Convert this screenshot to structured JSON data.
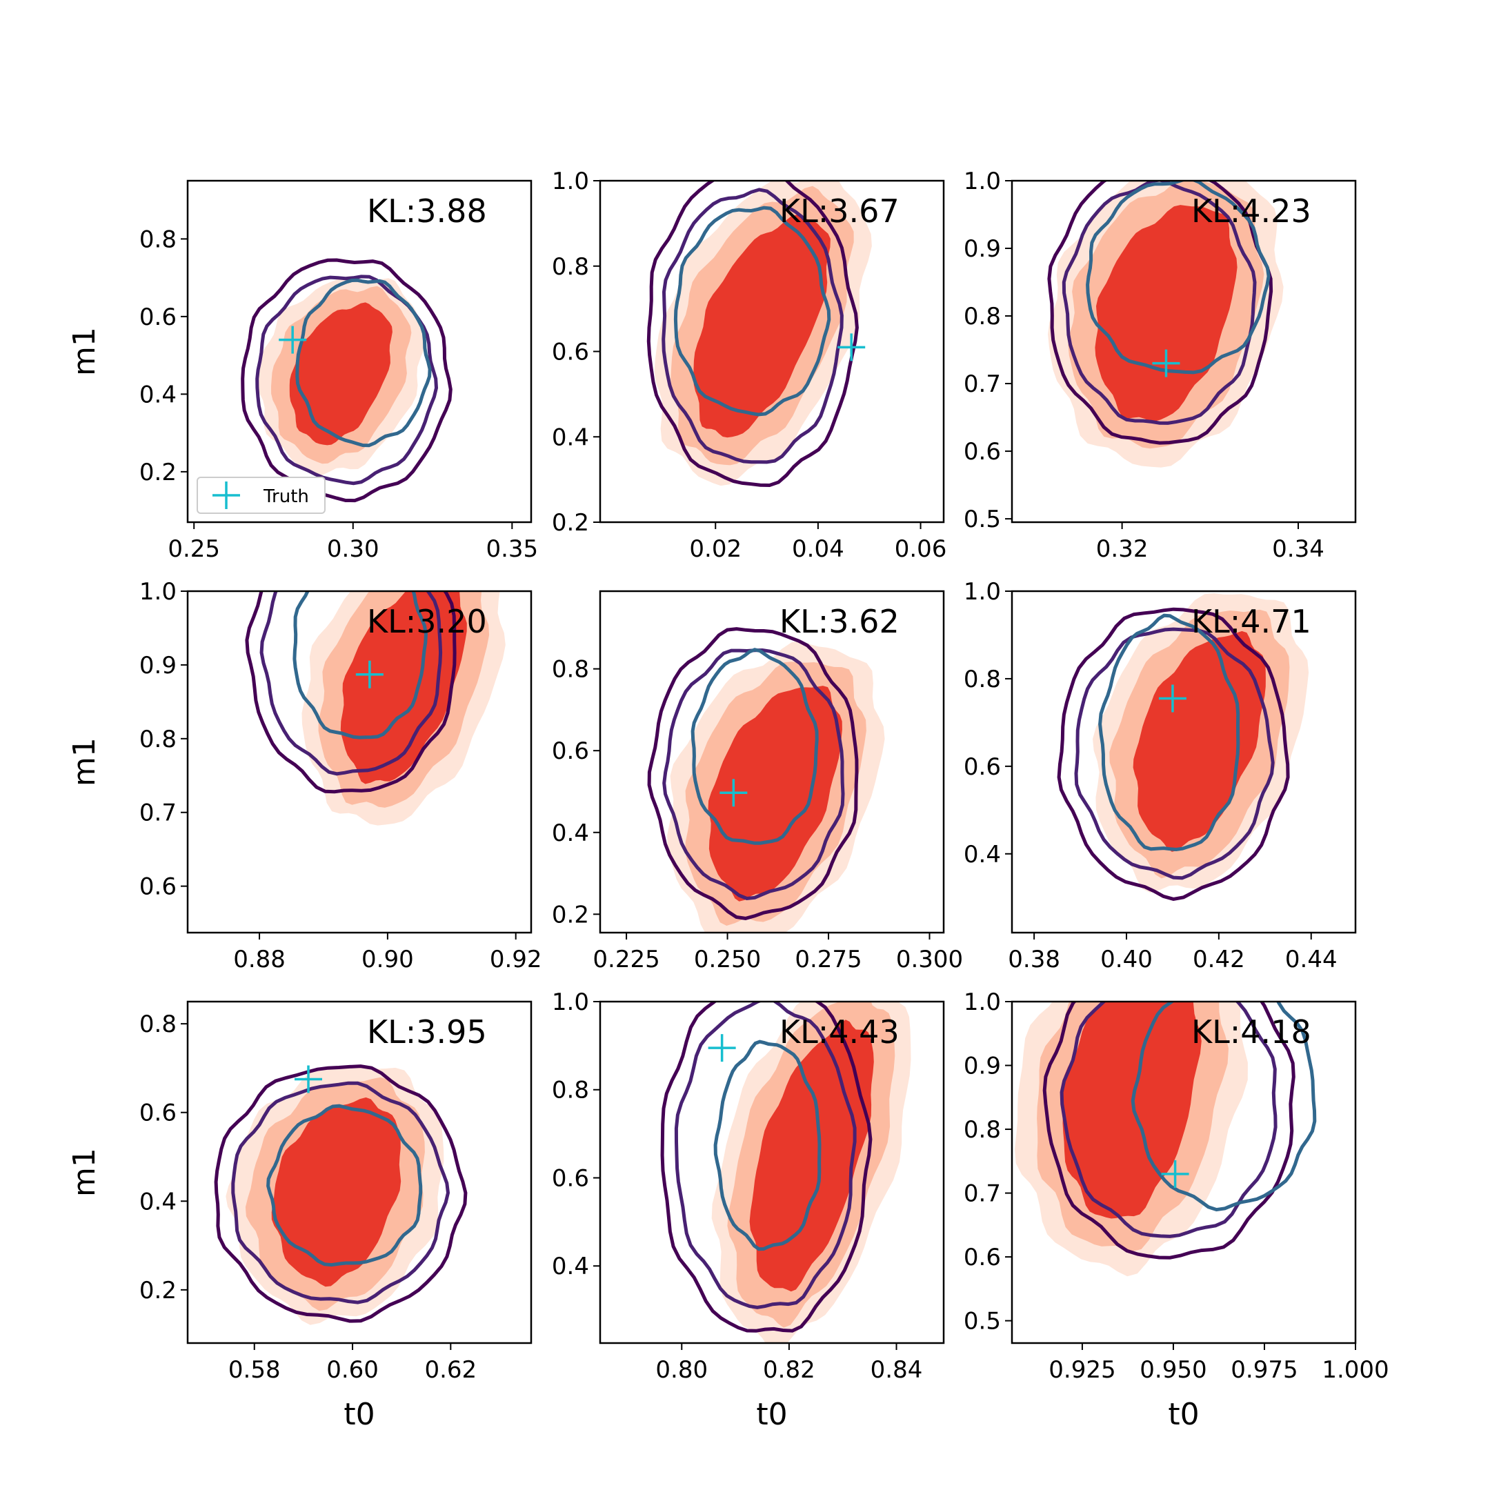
{
  "figure": {
    "xlabel": "t0",
    "ylabel": "m1",
    "legend_label": "Truth",
    "colors": {
      "fill_outer": "#fee5d9",
      "fill_mid": "#fcbba1",
      "fill_inner": "#e8382b",
      "contour_outer": "#440154",
      "contour_mid": "#482173",
      "contour_inner": "#31688e",
      "truth_marker": "#17becf",
      "frame": "#000000"
    }
  },
  "chart_data": [
    {
      "type": "contour",
      "xlabel": "",
      "ylabel": "m1",
      "kl": "KL:3.88",
      "xlim": [
        0.248,
        0.356
      ],
      "ylim": [
        0.07,
        0.95
      ],
      "xticks": [
        "0.25",
        "0.30",
        "0.35"
      ],
      "yticks": [
        "0.2",
        "0.4",
        "0.6",
        "0.8"
      ],
      "truth": [
        0.281,
        0.54
      ],
      "legend": true
    },
    {
      "type": "contour",
      "xlabel": "",
      "ylabel": "",
      "kl": "KL:3.67",
      "xlim": [
        -0.0025,
        0.0645
      ],
      "ylim": [
        0.2,
        1.0
      ],
      "xticks": [
        "0.02",
        "0.04",
        "0.06"
      ],
      "yticks": [
        "0.2",
        "0.4",
        "0.6",
        "0.8",
        "1.0"
      ],
      "truth": [
        0.0465,
        0.61
      ],
      "legend": false
    },
    {
      "type": "contour",
      "xlabel": "",
      "ylabel": "",
      "kl": "KL:4.23",
      "xlim": [
        0.3075,
        0.3465
      ],
      "ylim": [
        0.495,
        1.0
      ],
      "xticks": [
        "0.32",
        "0.34"
      ],
      "yticks": [
        "0.5",
        "0.6",
        "0.7",
        "0.8",
        "0.9",
        "1.0"
      ],
      "truth": [
        0.325,
        0.73
      ],
      "legend": false
    },
    {
      "type": "contour",
      "xlabel": "",
      "ylabel": "m1",
      "kl": "KL:3.20",
      "xlim": [
        0.8688,
        0.9224
      ],
      "ylim": [
        0.537,
        1.0
      ],
      "xticks": [
        "0.88",
        "0.90",
        "0.92"
      ],
      "yticks": [
        "0.6",
        "0.7",
        "0.8",
        "0.9",
        "1.0"
      ],
      "truth": [
        0.8972,
        0.887
      ],
      "legend": false
    },
    {
      "type": "contour",
      "xlabel": "",
      "ylabel": "",
      "kl": "KL:3.62",
      "xlim": [
        0.2185,
        0.3035
      ],
      "ylim": [
        0.155,
        0.99
      ],
      "xticks": [
        "0.225",
        "0.250",
        "0.275",
        "0.300"
      ],
      "yticks": [
        "0.2",
        "0.4",
        "0.6",
        "0.8"
      ],
      "truth": [
        0.2515,
        0.497
      ],
      "legend": false
    },
    {
      "type": "contour",
      "xlabel": "",
      "ylabel": "",
      "kl": "KL:4.71",
      "xlim": [
        0.3752,
        0.4496
      ],
      "ylim": [
        0.22,
        1.0
      ],
      "xticks": [
        "0.38",
        "0.40",
        "0.42",
        "0.44"
      ],
      "yticks": [
        "0.4",
        "0.6",
        "0.8",
        "1.0"
      ],
      "truth": [
        0.41,
        0.755
      ],
      "legend": false
    },
    {
      "type": "contour",
      "xlabel": "t0",
      "ylabel": "m1",
      "kl": "KL:3.95",
      "xlim": [
        0.5664,
        0.6364
      ],
      "ylim": [
        0.08,
        0.85
      ],
      "xticks": [
        "0.58",
        "0.60",
        "0.62"
      ],
      "yticks": [
        "0.2",
        "0.4",
        "0.6",
        "0.8"
      ],
      "truth": [
        0.591,
        0.675
      ],
      "legend": false
    },
    {
      "type": "contour",
      "xlabel": "t0",
      "ylabel": "",
      "kl": "KL:4.43",
      "xlim": [
        0.7848,
        0.8488
      ],
      "ylim": [
        0.225,
        1.0
      ],
      "xticks": [
        "0.80",
        "0.82",
        "0.84"
      ],
      "yticks": [
        "0.4",
        "0.6",
        "0.8",
        "1.0"
      ],
      "truth": [
        0.8075,
        0.895
      ],
      "legend": false
    },
    {
      "type": "contour",
      "xlabel": "t0",
      "ylabel": "",
      "kl": "KL:4.18",
      "xlim": [
        0.9057,
        1.0
      ],
      "ylim": [
        0.465,
        1.0
      ],
      "xticks": [
        "0.925",
        "0.950",
        "0.975",
        "1.000"
      ],
      "yticks": [
        "0.5",
        "0.6",
        "0.7",
        "0.8",
        "0.9",
        "1.0"
      ],
      "truth": [
        0.9505,
        0.73
      ],
      "legend": false
    }
  ]
}
